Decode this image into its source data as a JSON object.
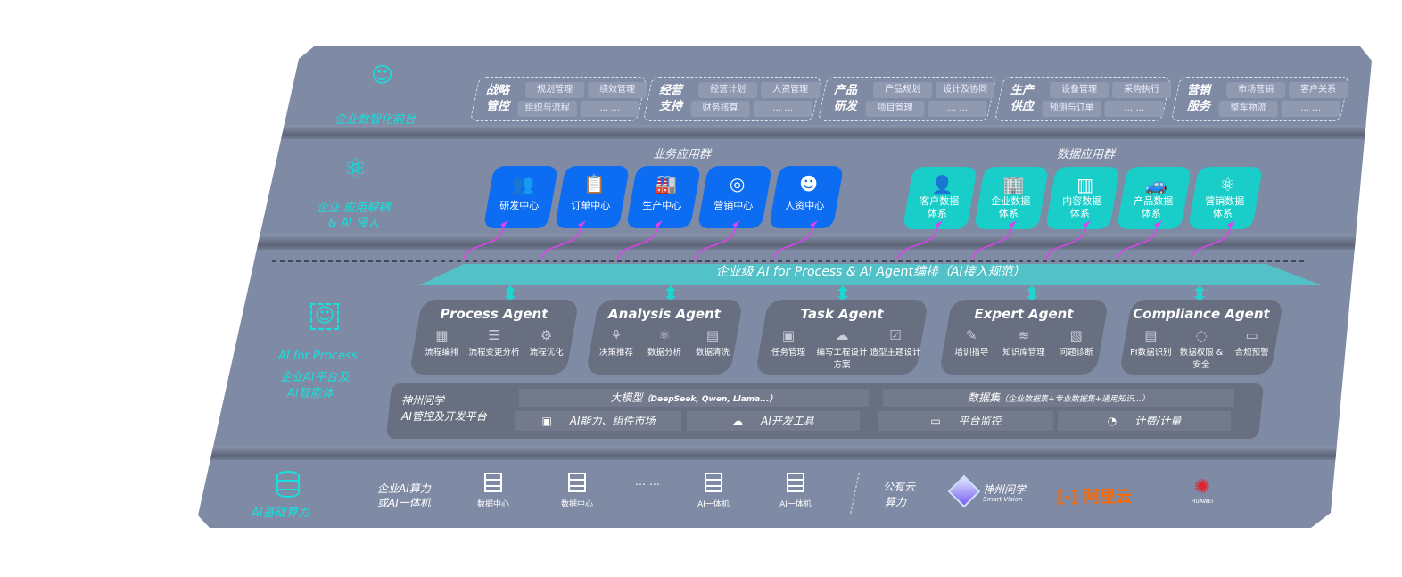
{
  "front_layer": {
    "label": "企业数智化前台",
    "icon": "brain-head-icon",
    "groups": [
      {
        "title": "战略管控",
        "items": [
          "规划管理",
          "绩效管理",
          "组织与流程",
          "… …"
        ]
      },
      {
        "title": "经营支持",
        "items": [
          "经营计划",
          "人资管理",
          "财务核算",
          "… …"
        ]
      },
      {
        "title": "产品研发",
        "items": [
          "产品规划",
          "设计及协同",
          "项目管理",
          "… …"
        ]
      },
      {
        "title": "生产供应",
        "items": [
          "设备管理",
          "采购执行",
          "预测与订单",
          "… …"
        ]
      },
      {
        "title": "营销服务",
        "items": [
          "市场营销",
          "客户关系",
          "整车物流",
          "… …"
        ]
      }
    ]
  },
  "app_layer": {
    "label1": "企业 应用解耦",
    "label2": "& AI 侵入",
    "icon": "molecule-icon",
    "business_title": "业务应用群",
    "business": [
      {
        "label": "研发中心",
        "icon": "team-icon"
      },
      {
        "label": "订单中心",
        "icon": "clipboard-icon"
      },
      {
        "label": "生产中心",
        "icon": "factory-icon"
      },
      {
        "label": "营销中心",
        "icon": "target-icon"
      },
      {
        "label": "人资中心",
        "icon": "person-icon"
      }
    ],
    "data_title": "数据应用群",
    "data": [
      {
        "l1": "客户数据",
        "l2": "体系",
        "icon": "user-icon"
      },
      {
        "l1": "企业数据",
        "l2": "体系",
        "icon": "building-icon"
      },
      {
        "l1": "内容数据",
        "l2": "体系",
        "icon": "books-icon"
      },
      {
        "l1": "产品数据",
        "l2": "体系",
        "icon": "car-icon"
      },
      {
        "l1": "营销数据",
        "l2": "体系",
        "icon": "atom-icon"
      }
    ]
  },
  "orchestration": "企业级 AI for Process & AI Agent编排（AI接入规范）",
  "ai_layer": {
    "l1": "AI for Process",
    "l2": "企业AI平台及",
    "l3": "AI智能体",
    "icon": "face-scan-icon",
    "agents": [
      {
        "title": "Process Agent",
        "caps": [
          "流程编排",
          "流程变更分析",
          "流程优化"
        ]
      },
      {
        "title": "Analysis Agent",
        "caps": [
          "决策推荐",
          "数据分析",
          "数据清洗"
        ]
      },
      {
        "title": "Task Agent",
        "caps": [
          "任务管理",
          "编写工程设计方案",
          "造型主题设计"
        ]
      },
      {
        "title": "Expert Agent",
        "caps": [
          "培训指导",
          "知识库管理",
          "问题诊断"
        ]
      },
      {
        "title": "Compliance Agent",
        "caps": [
          "PI数据识别",
          "数据权限 & 安全",
          "合规预警"
        ]
      }
    ],
    "platform": {
      "l1": "神州问学",
      "l2": "AI管控及开发平台",
      "llm": "大模型",
      "llm_note": "（DeepSeek, Qwen, Llama...）",
      "dataset": "数据集",
      "dataset_note": "（企业数据集+专业数据集+通用知识...）",
      "tools": [
        "AI能力、组件市场",
        "AI开发工具",
        "平台监控",
        "计费/计量"
      ]
    }
  },
  "infra": {
    "label": "AI基础算力",
    "icon": "database-icon",
    "enterprise1": "企业AI算力",
    "enterprise2": "或AI一体机",
    "servers": [
      "数据中心",
      "数据中心",
      "AI一体机",
      "AI一体机"
    ],
    "ellipsis": "… …",
    "public1": "公有云",
    "public2": "算力",
    "logos": {
      "szwx": "神州问学",
      "szwx_en": "Smart Vision",
      "aliyun": "阿里云",
      "huawei": "HUAWEI"
    }
  },
  "colors": {
    "board": "#7f8ba5",
    "accent": "#17e0dc",
    "business": "#0c6cf2",
    "data": "#19cdc8",
    "arrow": "#e040f0",
    "aliyun": "#ff6a00",
    "huawei": "#e4222b"
  }
}
